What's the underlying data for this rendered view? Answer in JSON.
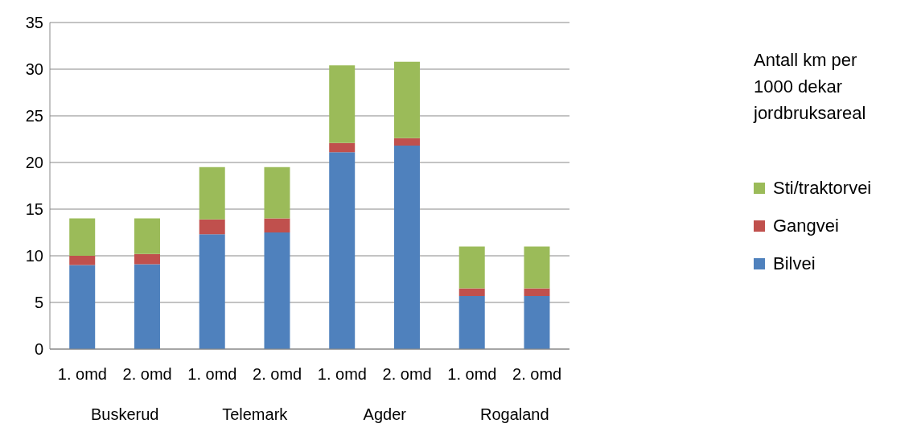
{
  "chart_data": {
    "type": "bar",
    "stacked": true,
    "legend_title": "Antall km per 1000 dekar jordbruksareal",
    "categories": [
      "1. omd",
      "2. omd",
      "1. omd",
      "2. omd",
      "1. omd",
      "2. omd",
      "1. omd",
      "2. omd"
    ],
    "annotations": [
      "Buskerud",
      "Telemark",
      "Agder",
      "Rogaland"
    ],
    "series": [
      {
        "name": "Bilvei",
        "color": "#4f81bd",
        "values": [
          9.0,
          9.1,
          12.3,
          12.5,
          21.1,
          21.8,
          5.7,
          5.7
        ]
      },
      {
        "name": "Gangvei",
        "color": "#c0504d",
        "values": [
          1.0,
          1.1,
          1.6,
          1.5,
          1.0,
          0.8,
          0.8,
          0.8
        ]
      },
      {
        "name": "Sti/traktorvei",
        "color": "#9bbb59",
        "values": [
          4.0,
          3.8,
          5.6,
          5.5,
          8.3,
          8.2,
          4.5,
          4.5
        ]
      }
    ],
    "ylim": [
      0,
      35
    ],
    "yticks": [
      0,
      5,
      10,
      15,
      20,
      25,
      30,
      35
    ],
    "grid": "y",
    "legend": "right"
  }
}
